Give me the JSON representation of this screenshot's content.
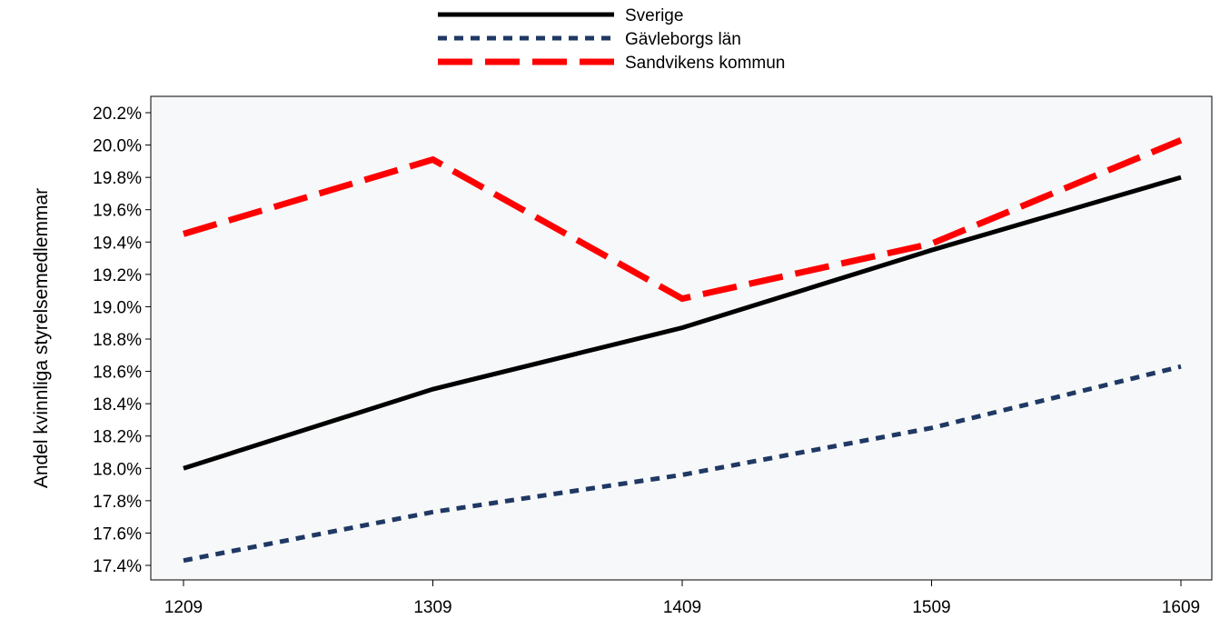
{
  "chart_data": {
    "type": "line",
    "title": "",
    "xlabel": "",
    "ylabel": "Andel kvinnliga styrelsemedlemmar",
    "categories": [
      "1209",
      "1309",
      "1409",
      "1509",
      "1609"
    ],
    "ylim": [
      17.4,
      20.2
    ],
    "yticks": [
      17.4,
      17.6,
      17.8,
      18.0,
      18.2,
      18.4,
      18.6,
      18.8,
      19.0,
      19.2,
      19.4,
      19.6,
      19.8,
      20.0,
      20.2
    ],
    "ytick_labels": [
      "17.4%",
      "17.6%",
      "17.8%",
      "18.0%",
      "18.2%",
      "18.4%",
      "18.6%",
      "18.8%",
      "19.0%",
      "19.2%",
      "19.4%",
      "19.6%",
      "19.8%",
      "20.0%",
      "20.2%"
    ],
    "grid": false,
    "legend_position": "top-center",
    "series": [
      {
        "name": "Sverige",
        "values": [
          18.0,
          18.49,
          18.87,
          19.35,
          19.8
        ],
        "color": "#000000",
        "style": "solid"
      },
      {
        "name": "Gävleborgs län",
        "values": [
          17.43,
          17.73,
          17.96,
          18.25,
          18.63
        ],
        "color": "#1f3864",
        "style": "dotted"
      },
      {
        "name": "Sandvikens kommun",
        "values": [
          19.45,
          19.91,
          19.05,
          19.39,
          20.03
        ],
        "color": "#ff0000",
        "style": "dashed"
      }
    ]
  }
}
